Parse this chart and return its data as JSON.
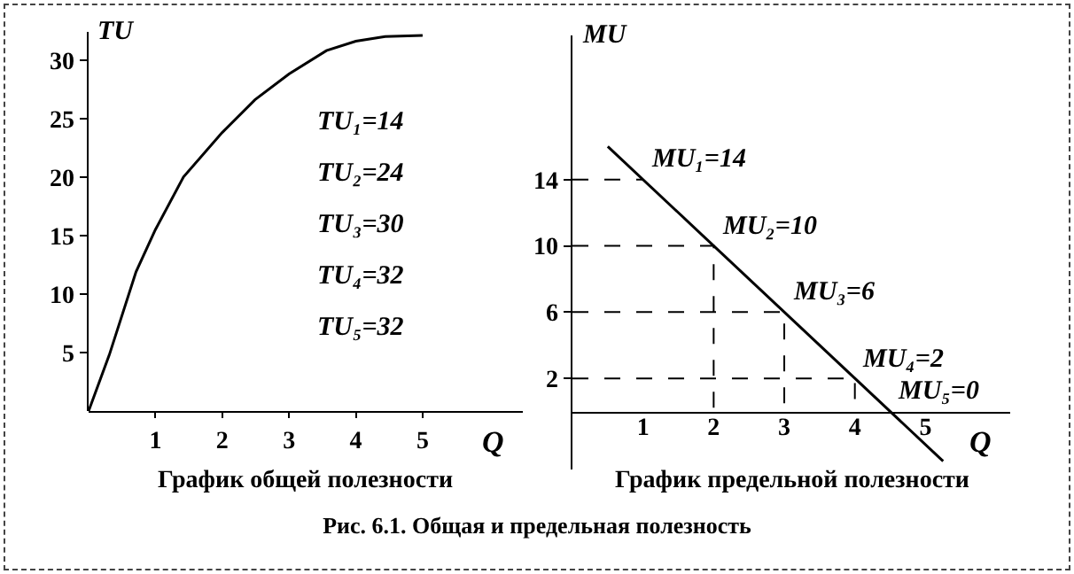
{
  "chart_data": [
    {
      "type": "line",
      "title": "График общей полезности",
      "xlabel": "Q",
      "ylabel": "TU",
      "xlim": [
        0,
        6.5
      ],
      "ylim": [
        0,
        32.4
      ],
      "xticks": [
        1,
        2,
        3,
        4,
        5
      ],
      "yticks": [
        5,
        10,
        15,
        20,
        25,
        30
      ],
      "grid": false,
      "marker": "none",
      "series": [
        {
          "color": "#000000",
          "line_style": "solid",
          "x": [
            0,
            0.31,
            0.71,
            1.0,
            1.42,
            2.0,
            2.49,
            3.0,
            3.56,
            4.0,
            4.44,
            5.0
          ],
          "values": [
            0,
            4.8,
            11.9,
            15.5,
            20.0,
            23.8,
            26.6,
            28.8,
            30.8,
            31.6,
            32.0,
            32.1
          ]
        }
      ],
      "annotations": [
        "TU₁=14",
        "TU₂=24",
        "TU₃=30",
        "TU₄=32",
        "TU₅=32"
      ]
    },
    {
      "type": "line",
      "title": "График предельной полезности",
      "xlabel": "Q",
      "ylabel": "MU",
      "xlim": [
        0,
        6.2
      ],
      "ylim": [
        -3.5,
        22.7
      ],
      "xticks": [
        1,
        2,
        3,
        4,
        5
      ],
      "yticks": [
        2,
        6,
        10,
        14
      ],
      "grid": false,
      "marker": "none",
      "series": [
        {
          "color": "#000000",
          "line_style": "solid",
          "x": [
            0.5,
            5.25
          ],
          "values": [
            16,
            -3
          ]
        },
        {
          "color": "#000000",
          "line_style": "dashed",
          "x": [
            0,
            1
          ],
          "values": [
            14,
            14
          ]
        },
        {
          "color": "#000000",
          "line_style": "dashed",
          "x": [
            0,
            2,
            2
          ],
          "values": [
            10,
            10,
            0
          ]
        },
        {
          "color": "#000000",
          "line_style": "dashed",
          "x": [
            0,
            3,
            3
          ],
          "values": [
            6,
            6,
            0
          ]
        },
        {
          "color": "#000000",
          "line_style": "dashed",
          "x": [
            0,
            4,
            4
          ],
          "values": [
            2,
            2,
            0
          ]
        }
      ],
      "annotations": [
        {
          "text": "MU₁=14",
          "x": 1,
          "y": 14
        },
        {
          "text": "MU₂=10",
          "x": 2,
          "y": 10
        },
        {
          "text": "MU₃=6",
          "x": 3,
          "y": 6
        },
        {
          "text": "MU₄=2",
          "x": 4,
          "y": 2
        },
        {
          "text": "MU₅=0",
          "x": 4.5,
          "y": 0
        },
        "Рис. 6.1. Общая и предельная  полезность"
      ]
    }
  ]
}
